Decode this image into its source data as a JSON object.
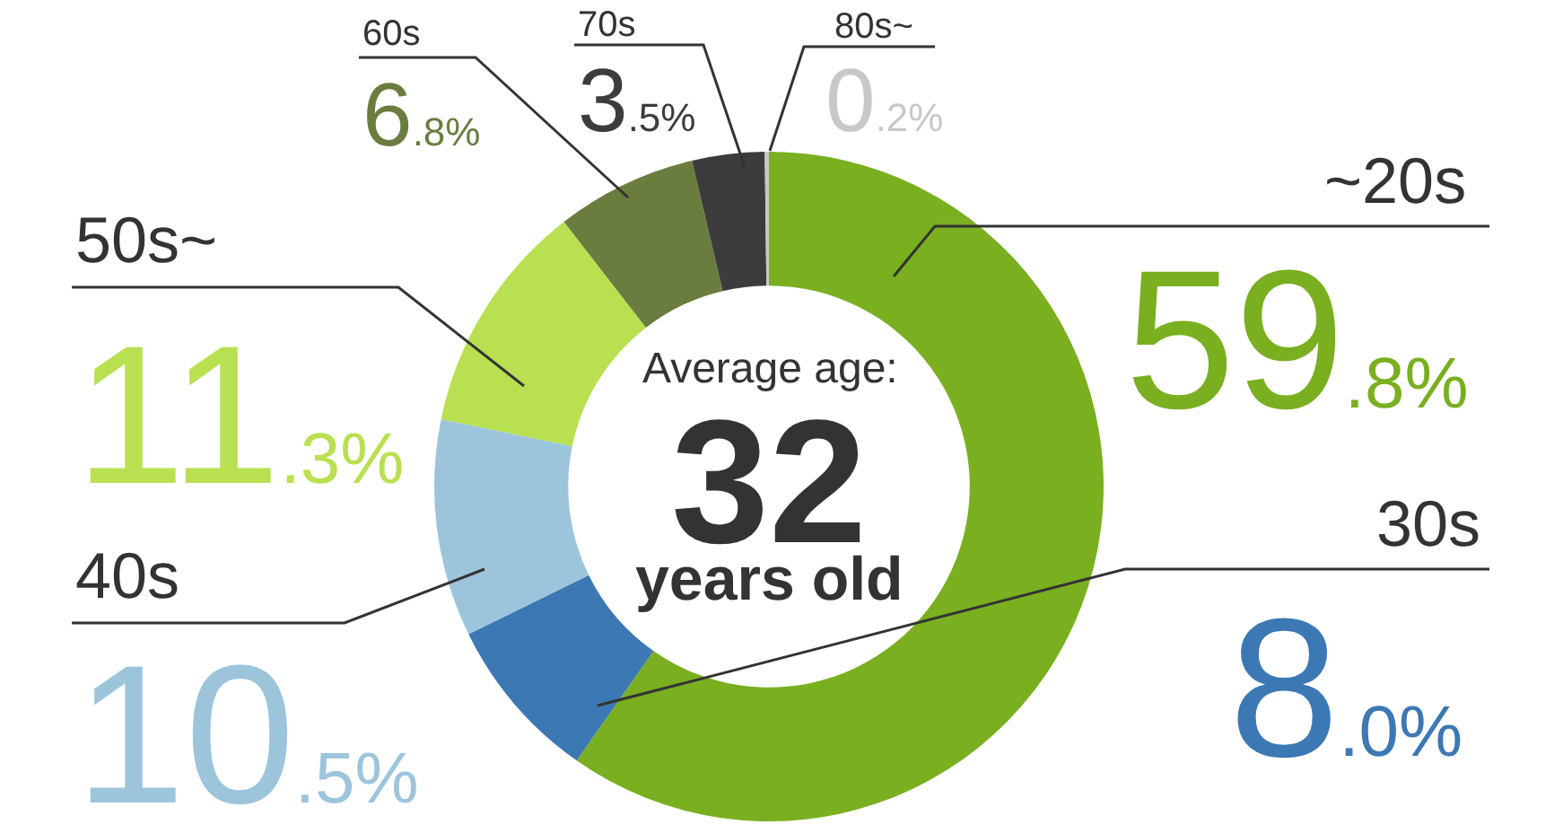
{
  "chart_data": {
    "type": "donut",
    "categories": [
      "~20s",
      "30s",
      "40s",
      "50s~",
      "60s",
      "70s",
      "80s~"
    ],
    "values": [
      59.8,
      8.0,
      10.5,
      11.3,
      6.8,
      3.5,
      0.2
    ],
    "colors": [
      "#7aaf20",
      "#3c78b4",
      "#9cc5dc",
      "#b9e050",
      "#6a7d3f",
      "#3c3c3c",
      "#c8c8c8"
    ],
    "value_labels": [
      "59.8%",
      "8.0%",
      "10.5%",
      "11.3%",
      "6.8%",
      "3.5%",
      "0.2%"
    ],
    "annotations": [
      "Average age:",
      "32",
      "years old"
    ]
  }
}
